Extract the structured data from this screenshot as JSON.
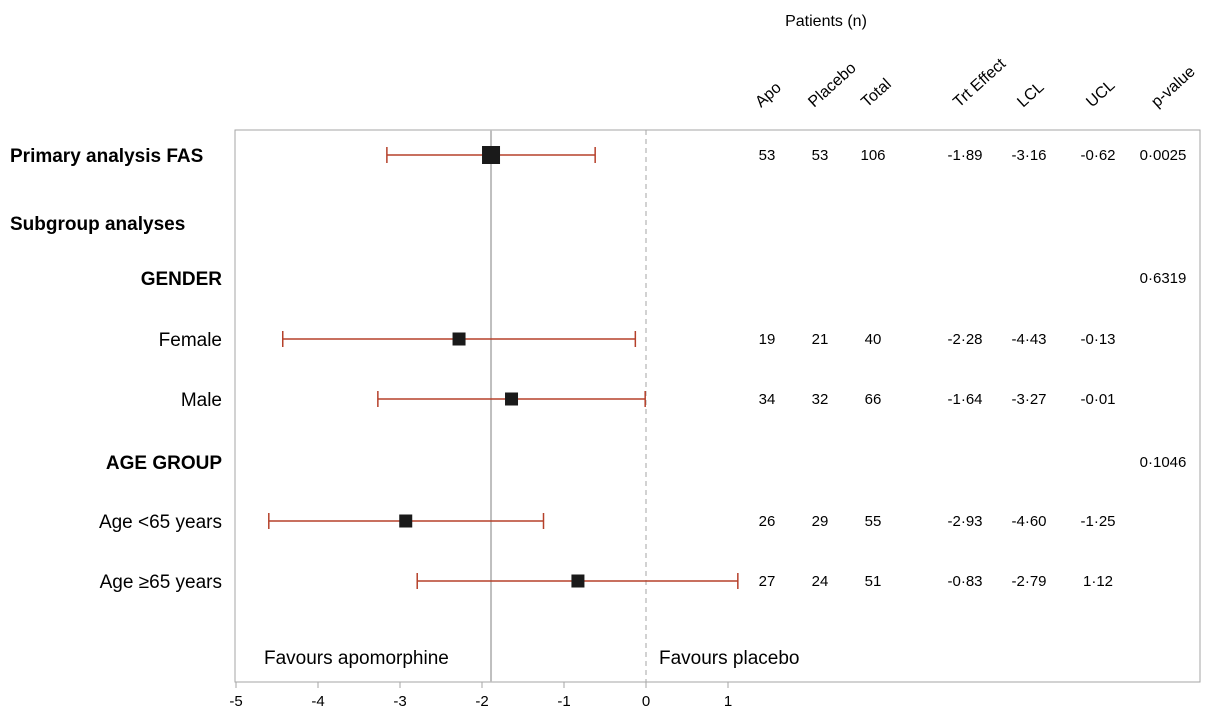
{
  "chart_data": {
    "type": "forest",
    "header_group": "Patients (n)",
    "column_headers": [
      "Apo",
      "Placebo",
      "Total",
      "Trt Effect",
      "LCL",
      "UCL",
      "p-value"
    ],
    "x_axis": {
      "xlim": [
        -5,
        1.8
      ],
      "ticks": [
        "-5",
        "-4",
        "-3",
        "-2",
        "-1",
        "0",
        "1"
      ],
      "reference_line": 0,
      "overall_effect_line": -1.89
    },
    "favours_left": "Favours apomorphine",
    "favours_right": "Favours placebo",
    "rows": [
      {
        "label": "Primary analysis FAS",
        "style": "bold",
        "apo": "53",
        "placebo": "53",
        "total": "106",
        "effect_label": "-1·89",
        "lcl_label": "-3·16",
        "ucl_label": "-0·62",
        "pvalue": "0·0025",
        "effect": -1.89,
        "lcl": -3.16,
        "ucl": -0.62
      },
      {
        "label": "Subgroup analyses",
        "style": "bold",
        "apo": "",
        "placebo": "",
        "total": "",
        "effect_label": "",
        "lcl_label": "",
        "ucl_label": "",
        "pvalue": ""
      },
      {
        "label": "GENDER",
        "style": "bold-right",
        "apo": "",
        "placebo": "",
        "total": "",
        "effect_label": "",
        "lcl_label": "",
        "ucl_label": "",
        "pvalue": "0·6319"
      },
      {
        "label": "Female",
        "style": "right",
        "apo": "19",
        "placebo": "21",
        "total": "40",
        "effect_label": "-2·28",
        "lcl_label": "-4·43",
        "ucl_label": "-0·13",
        "pvalue": "",
        "effect": -2.28,
        "lcl": -4.43,
        "ucl": -0.13
      },
      {
        "label": "Male",
        "style": "right",
        "apo": "34",
        "placebo": "32",
        "total": "66",
        "effect_label": "-1·64",
        "lcl_label": "-3·27",
        "ucl_label": "-0·01",
        "pvalue": "",
        "effect": -1.64,
        "lcl": -3.27,
        "ucl": -0.01
      },
      {
        "label": "AGE GROUP",
        "style": "bold-right",
        "apo": "",
        "placebo": "",
        "total": "",
        "effect_label": "",
        "lcl_label": "",
        "ucl_label": "",
        "pvalue": "0·1046"
      },
      {
        "label": "Age <65 years",
        "style": "right",
        "apo": "26",
        "placebo": "29",
        "total": "55",
        "effect_label": "-2·93",
        "lcl_label": "-4·60",
        "ucl_label": "-1·25",
        "pvalue": "",
        "effect": -2.93,
        "lcl": -4.6,
        "ucl": -1.25
      },
      {
        "label": "Age ≥65 years",
        "style": "right",
        "apo": "27",
        "placebo": "24",
        "total": "51",
        "effect_label": "-0·83",
        "lcl_label": "-2·79",
        "ucl_label": "1·12",
        "pvalue": "",
        "effect": -0.83,
        "lcl": -2.79,
        "ucl": 1.12
      }
    ],
    "colors": {
      "ci_line": "#b5402a",
      "marker": "#1a1a1a",
      "frame": "#a6a6a6",
      "overall_line": "#bfbfbf",
      "reference_line": "#a6a6a6"
    }
  }
}
